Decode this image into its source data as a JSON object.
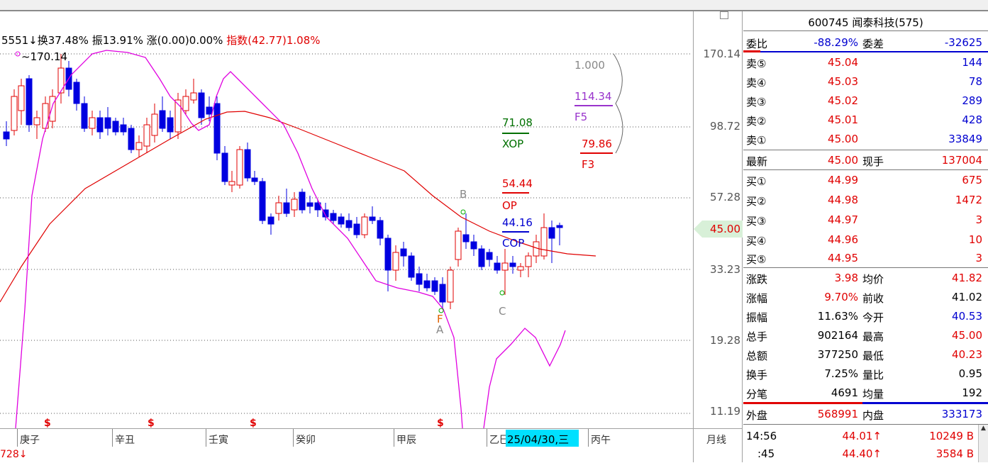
{
  "header": {
    "stats_prefix": "5551↓换37.48% 振13.91% 涨(0.00)0.00% ",
    "index_label": "指数(42.77)1.08%",
    "high_marker": "170.14"
  },
  "fib": {
    "f1": "1.000",
    "f5_val": "114.34",
    "f5": "F5",
    "xop_val": "71.08",
    "xop": "XOP",
    "f3_val": "79.86",
    "f3": "F3",
    "op_val": "54.44",
    "op": "OP",
    "cop_val": "44.16",
    "cop": "COP"
  },
  "points": {
    "a": "A",
    "b": "B",
    "c": "C",
    "f": "F"
  },
  "axis": {
    "ticks": [
      "170.14",
      "98.72",
      "57.28",
      "33.23",
      "19.28",
      "11.19"
    ],
    "current": "45.00",
    "period": "月线"
  },
  "xaxis": [
    "庚子",
    "辛丑",
    "壬寅",
    "癸卯",
    "甲辰",
    "乙巳",
    "丙午"
  ],
  "cursor_date": "25/04/30,三",
  "status_bottom": "728↓",
  "panel": {
    "title": "600745 闻泰科技(575)",
    "weibi": {
      "k": "委比",
      "v": "-88.29%",
      "k2": "委差",
      "v2": "-32625"
    },
    "sells": [
      {
        "k": "卖⑤",
        "p": "45.04",
        "q": "144"
      },
      {
        "k": "卖④",
        "p": "45.03",
        "q": "78"
      },
      {
        "k": "卖③",
        "p": "45.02",
        "q": "289"
      },
      {
        "k": "卖②",
        "p": "45.01",
        "q": "428"
      },
      {
        "k": "卖①",
        "p": "45.00",
        "q": "33849"
      }
    ],
    "latest": {
      "k": "最新",
      "v": "45.00",
      "k2": "现手",
      "v2": "137004"
    },
    "buys": [
      {
        "k": "买①",
        "p": "44.99",
        "q": "675"
      },
      {
        "k": "买②",
        "p": "44.98",
        "q": "1472"
      },
      {
        "k": "买③",
        "p": "44.97",
        "q": "3"
      },
      {
        "k": "买④",
        "p": "44.96",
        "q": "10"
      },
      {
        "k": "买⑤",
        "p": "44.95",
        "q": "3"
      }
    ],
    "stats": [
      {
        "k": "涨跌",
        "v": "3.98",
        "k2": "均价",
        "v2": "41.82"
      },
      {
        "k": "涨幅",
        "v": "9.70%",
        "k2": "前收",
        "v2": "41.02"
      },
      {
        "k": "振幅",
        "v": "11.63%",
        "k2": "今开",
        "v2": "40.53"
      },
      {
        "k": "总手",
        "v": "902164",
        "k2": "最高",
        "v2": "45.00"
      },
      {
        "k": "总额",
        "v": "377250",
        "k2": "最低",
        "v2": "40.23"
      },
      {
        "k": "换手",
        "v": "7.25%",
        "k2": "量比",
        "v2": "0.95"
      },
      {
        "k": "分笔",
        "v": "4691",
        "k2": "均量",
        "v2": "192"
      }
    ],
    "outer": {
      "k": "外盘",
      "v": "568991",
      "k2": "内盘",
      "v2": "333173"
    },
    "ticks": [
      {
        "t": "14:56",
        "p": "44.01↑",
        "q": "10249 B"
      },
      {
        "t": ":45",
        "p": "44.40↑",
        "q": "3584 B"
      }
    ]
  }
}
